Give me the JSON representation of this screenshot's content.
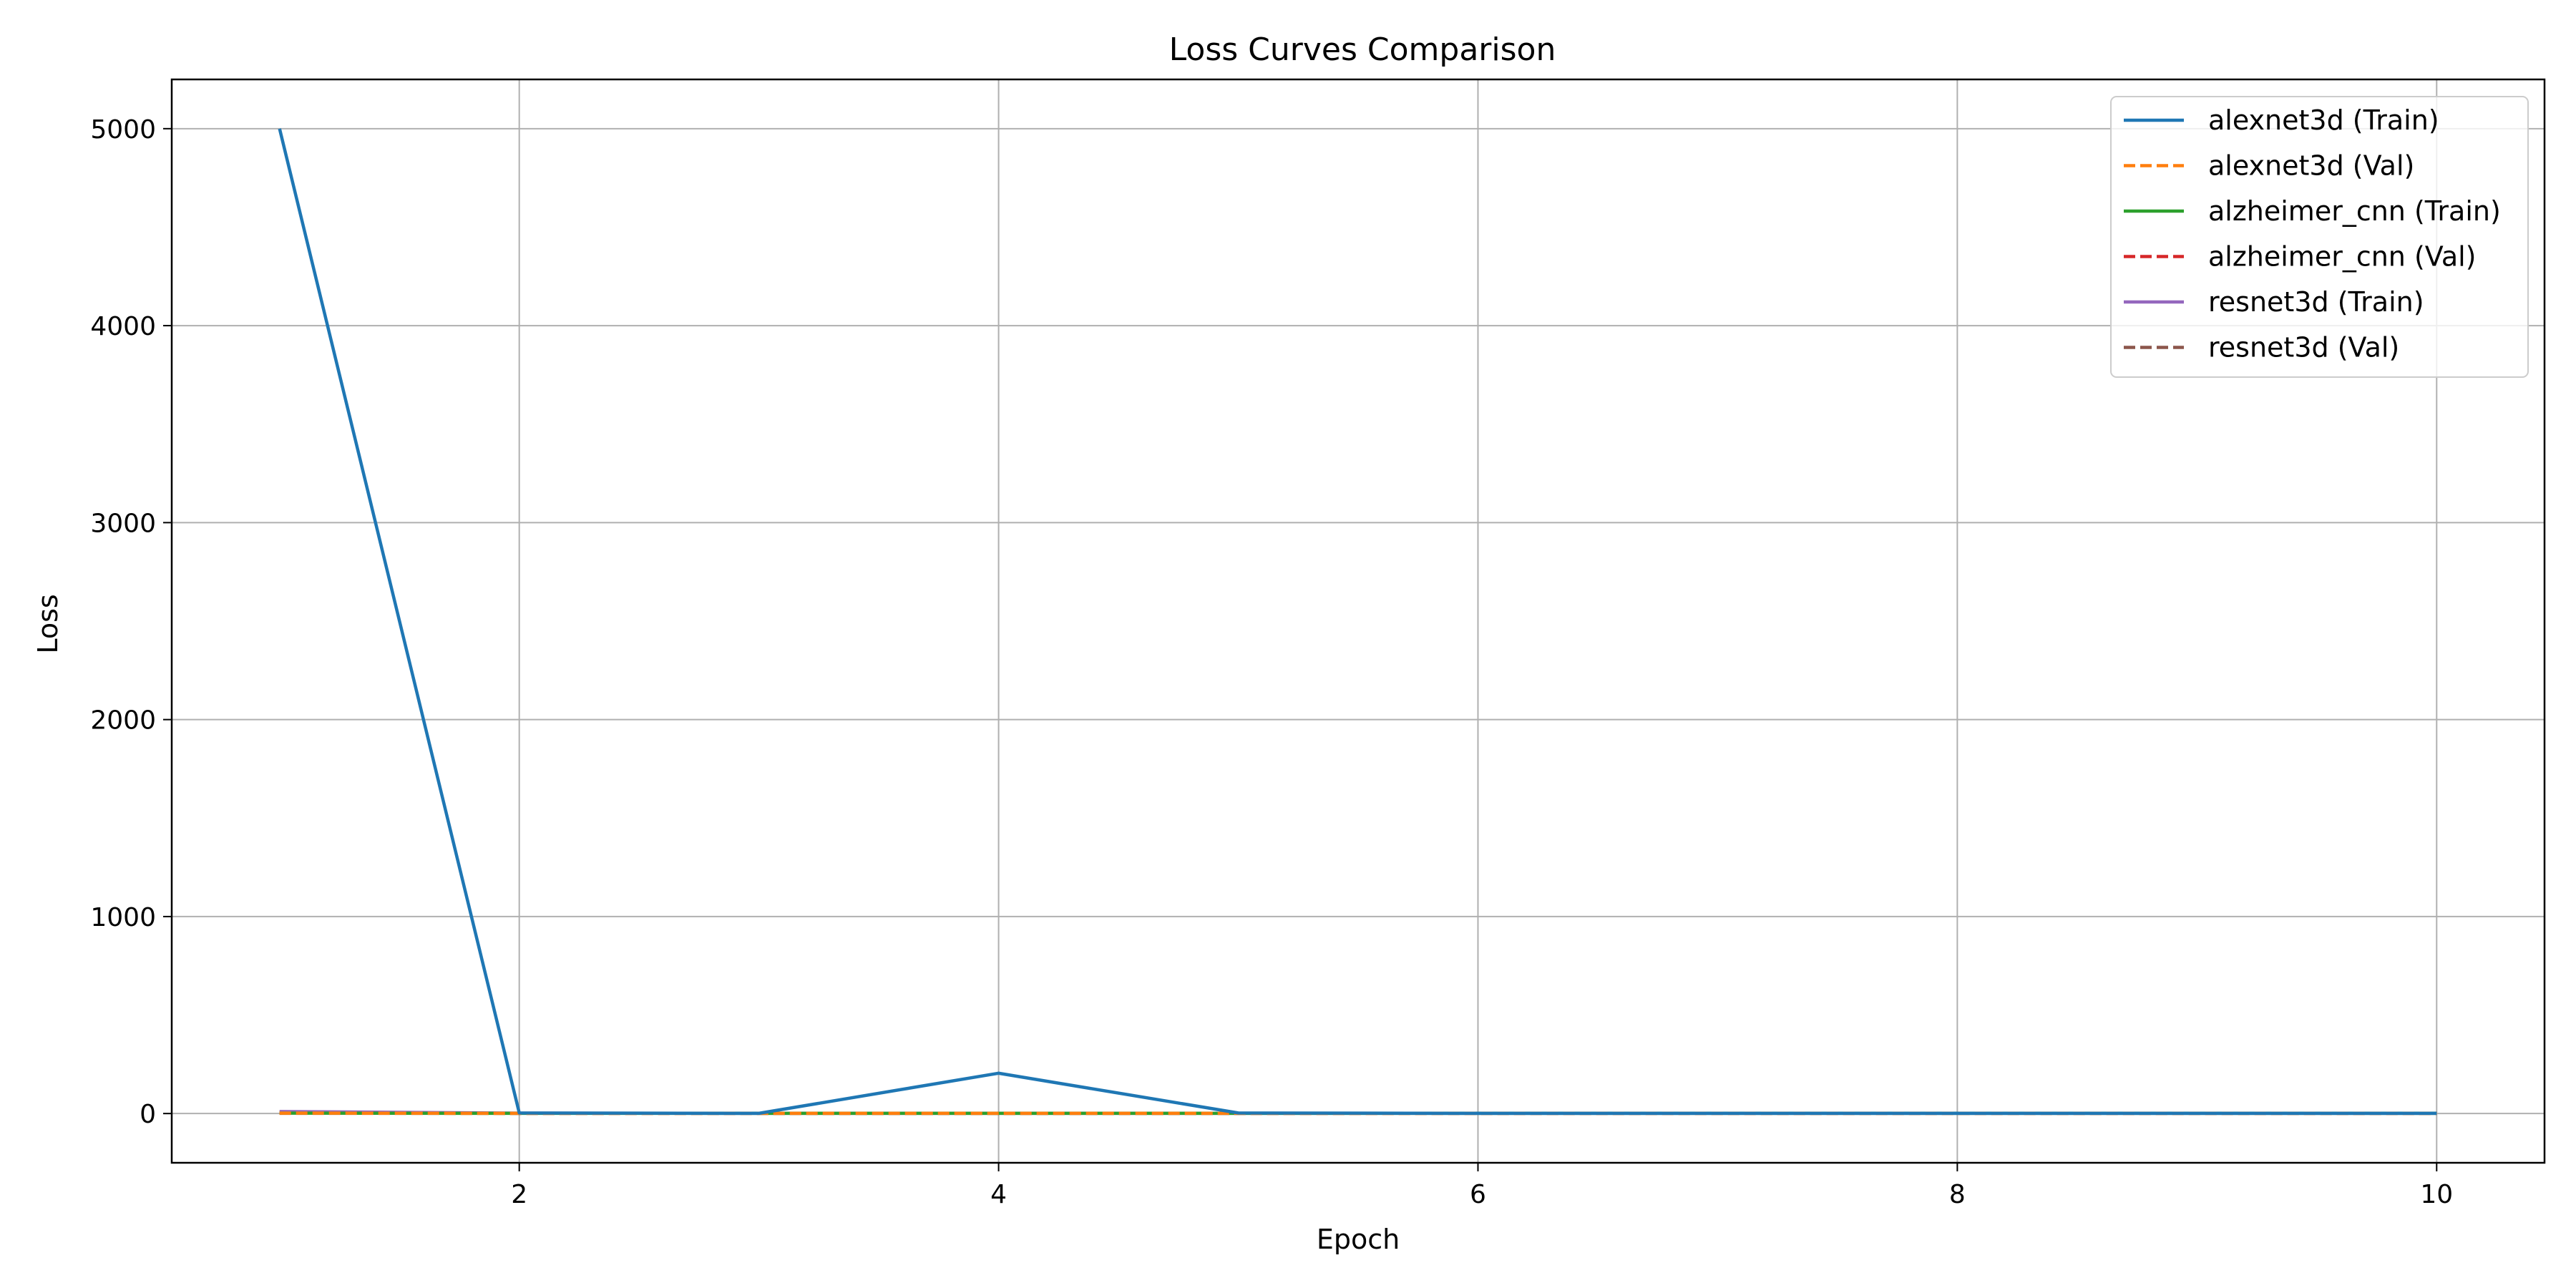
{
  "chart_data": {
    "type": "line",
    "title": "Loss Curves Comparison",
    "xlabel": "Epoch",
    "ylabel": "Loss",
    "xlim": [
      0.55,
      10.45
    ],
    "ylim": [
      -250,
      5250
    ],
    "xticks": [
      2,
      4,
      6,
      8,
      10
    ],
    "xtick_labels": [
      "2",
      "4",
      "6",
      "8",
      "10"
    ],
    "yticks": [
      0,
      1000,
      2000,
      3000,
      4000,
      5000
    ],
    "ytick_labels": [
      "0",
      "1000",
      "2000",
      "3000",
      "4000",
      "5000"
    ],
    "grid": true,
    "legend_position": "top-right",
    "x": [
      1,
      2,
      3,
      4,
      5,
      6,
      7,
      8,
      9,
      10
    ],
    "series": [
      {
        "name": "alexnet3d (Train)",
        "color": "#1f77b4",
        "dash": "solid",
        "values": [
          5000,
          3,
          1,
          205,
          3,
          1,
          1,
          1,
          1,
          1
        ]
      },
      {
        "name": "alexnet3d (Val)",
        "color": "#ff7f0e",
        "dash": "dashed",
        "values": [
          2,
          1,
          1,
          1,
          1,
          1,
          1,
          1,
          1,
          1
        ]
      },
      {
        "name": "alzheimer_cnn (Train)",
        "color": "#2ca02c",
        "dash": "solid",
        "values": [
          2,
          1,
          1,
          1,
          1,
          1,
          1,
          1,
          1,
          1
        ]
      },
      {
        "name": "alzheimer_cnn (Val)",
        "color": "#d62728",
        "dash": "dashed",
        "values": [
          1,
          1,
          1,
          1,
          1,
          1,
          1,
          1,
          1,
          1
        ]
      },
      {
        "name": "resnet3d (Train)",
        "color": "#9467bd",
        "dash": "solid",
        "values": [
          10,
          2,
          1,
          1,
          1,
          1,
          1,
          1,
          1,
          1
        ]
      },
      {
        "name": "resnet3d (Val)",
        "color": "#8c564b",
        "dash": "dashed",
        "values": [
          5,
          1,
          1,
          1,
          1,
          1,
          1,
          1,
          1,
          1
        ]
      }
    ]
  }
}
